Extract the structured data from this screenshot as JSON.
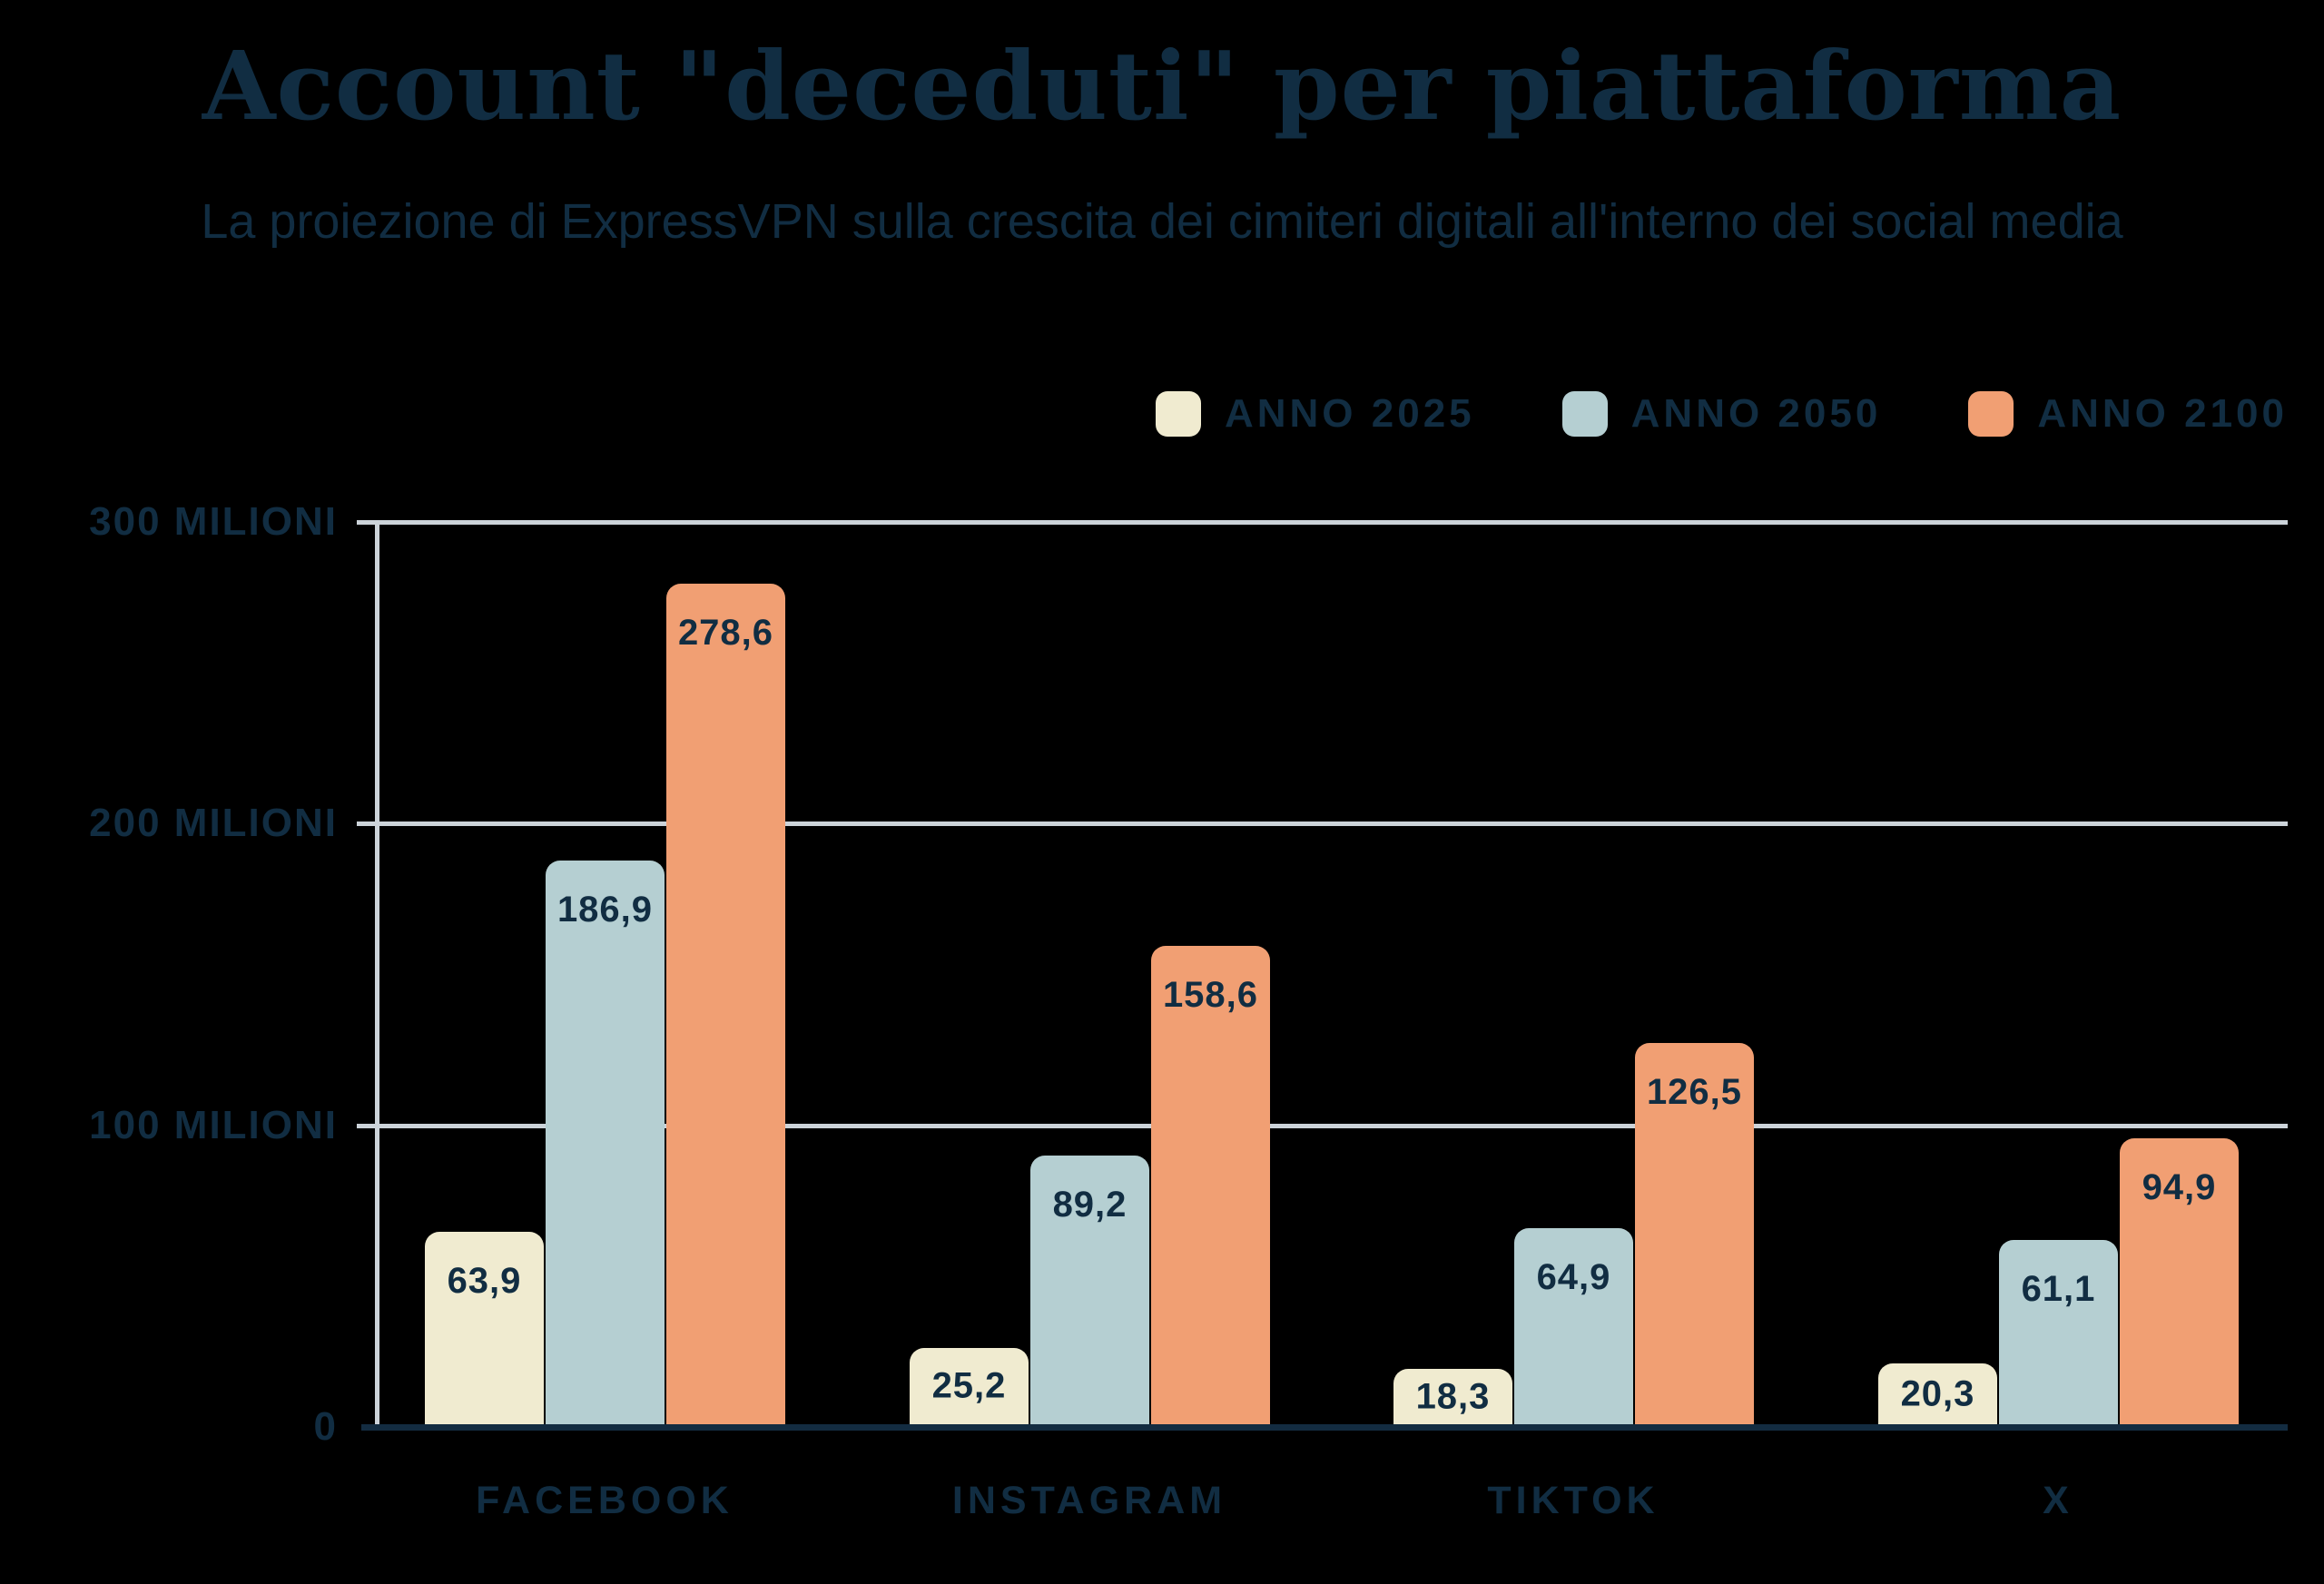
{
  "page": {
    "background": "#000000"
  },
  "header": {
    "title": "Account \"deceduti\" per piattaforma",
    "subtitle": "La proiezione di ExpressVPN sulla crescita dei cimiteri digitali all'interno dei social media"
  },
  "legend": {
    "items": [
      {
        "label": "ANNO 2025",
        "color": "#f0ebd0"
      },
      {
        "label": "ANNO 2050",
        "color": "#b5cfd2"
      },
      {
        "label": "ANNO 2100",
        "color": "#f19f73"
      }
    ]
  },
  "chart_data": {
    "type": "bar",
    "title": "Account \"deceduti\" per piattaforma",
    "subtitle": "La proiezione di ExpressVPN sulla crescita dei cimiteri digitali all'interno dei social media",
    "categories": [
      "FACEBOOK",
      "INSTAGRAM",
      "TIKTOK",
      "X"
    ],
    "series": [
      {
        "name": "ANNO 2025",
        "color": "#f0ebd0",
        "values": [
          63.9,
          25.2,
          18.3,
          20.3
        ],
        "labels": [
          "63,9",
          "25,2",
          "18,3",
          "20,3"
        ]
      },
      {
        "name": "ANNO 2050",
        "color": "#b5cfd2",
        "values": [
          186.9,
          89.2,
          64.9,
          61.1
        ],
        "labels": [
          "186,9",
          "89,2",
          "64,9",
          "61,1"
        ]
      },
      {
        "name": "ANNO 2100",
        "color": "#f19f73",
        "values": [
          278.6,
          158.6,
          126.5,
          94.9
        ],
        "labels": [
          "278,6",
          "158,6",
          "126,5",
          "94,9"
        ]
      }
    ],
    "yticks": [
      {
        "value": 300,
        "label": "300 MILIONI"
      },
      {
        "value": 200,
        "label": "200 MILIONI"
      },
      {
        "value": 100,
        "label": "100 MILIONI"
      },
      {
        "value": 0,
        "label": "0"
      }
    ],
    "ylim": [
      0,
      300
    ],
    "grid": true,
    "legend_position": "top-right",
    "colors": {
      "text": "#112d42",
      "gridline": "#ccd3d9",
      "baseline": "#132c41"
    }
  }
}
